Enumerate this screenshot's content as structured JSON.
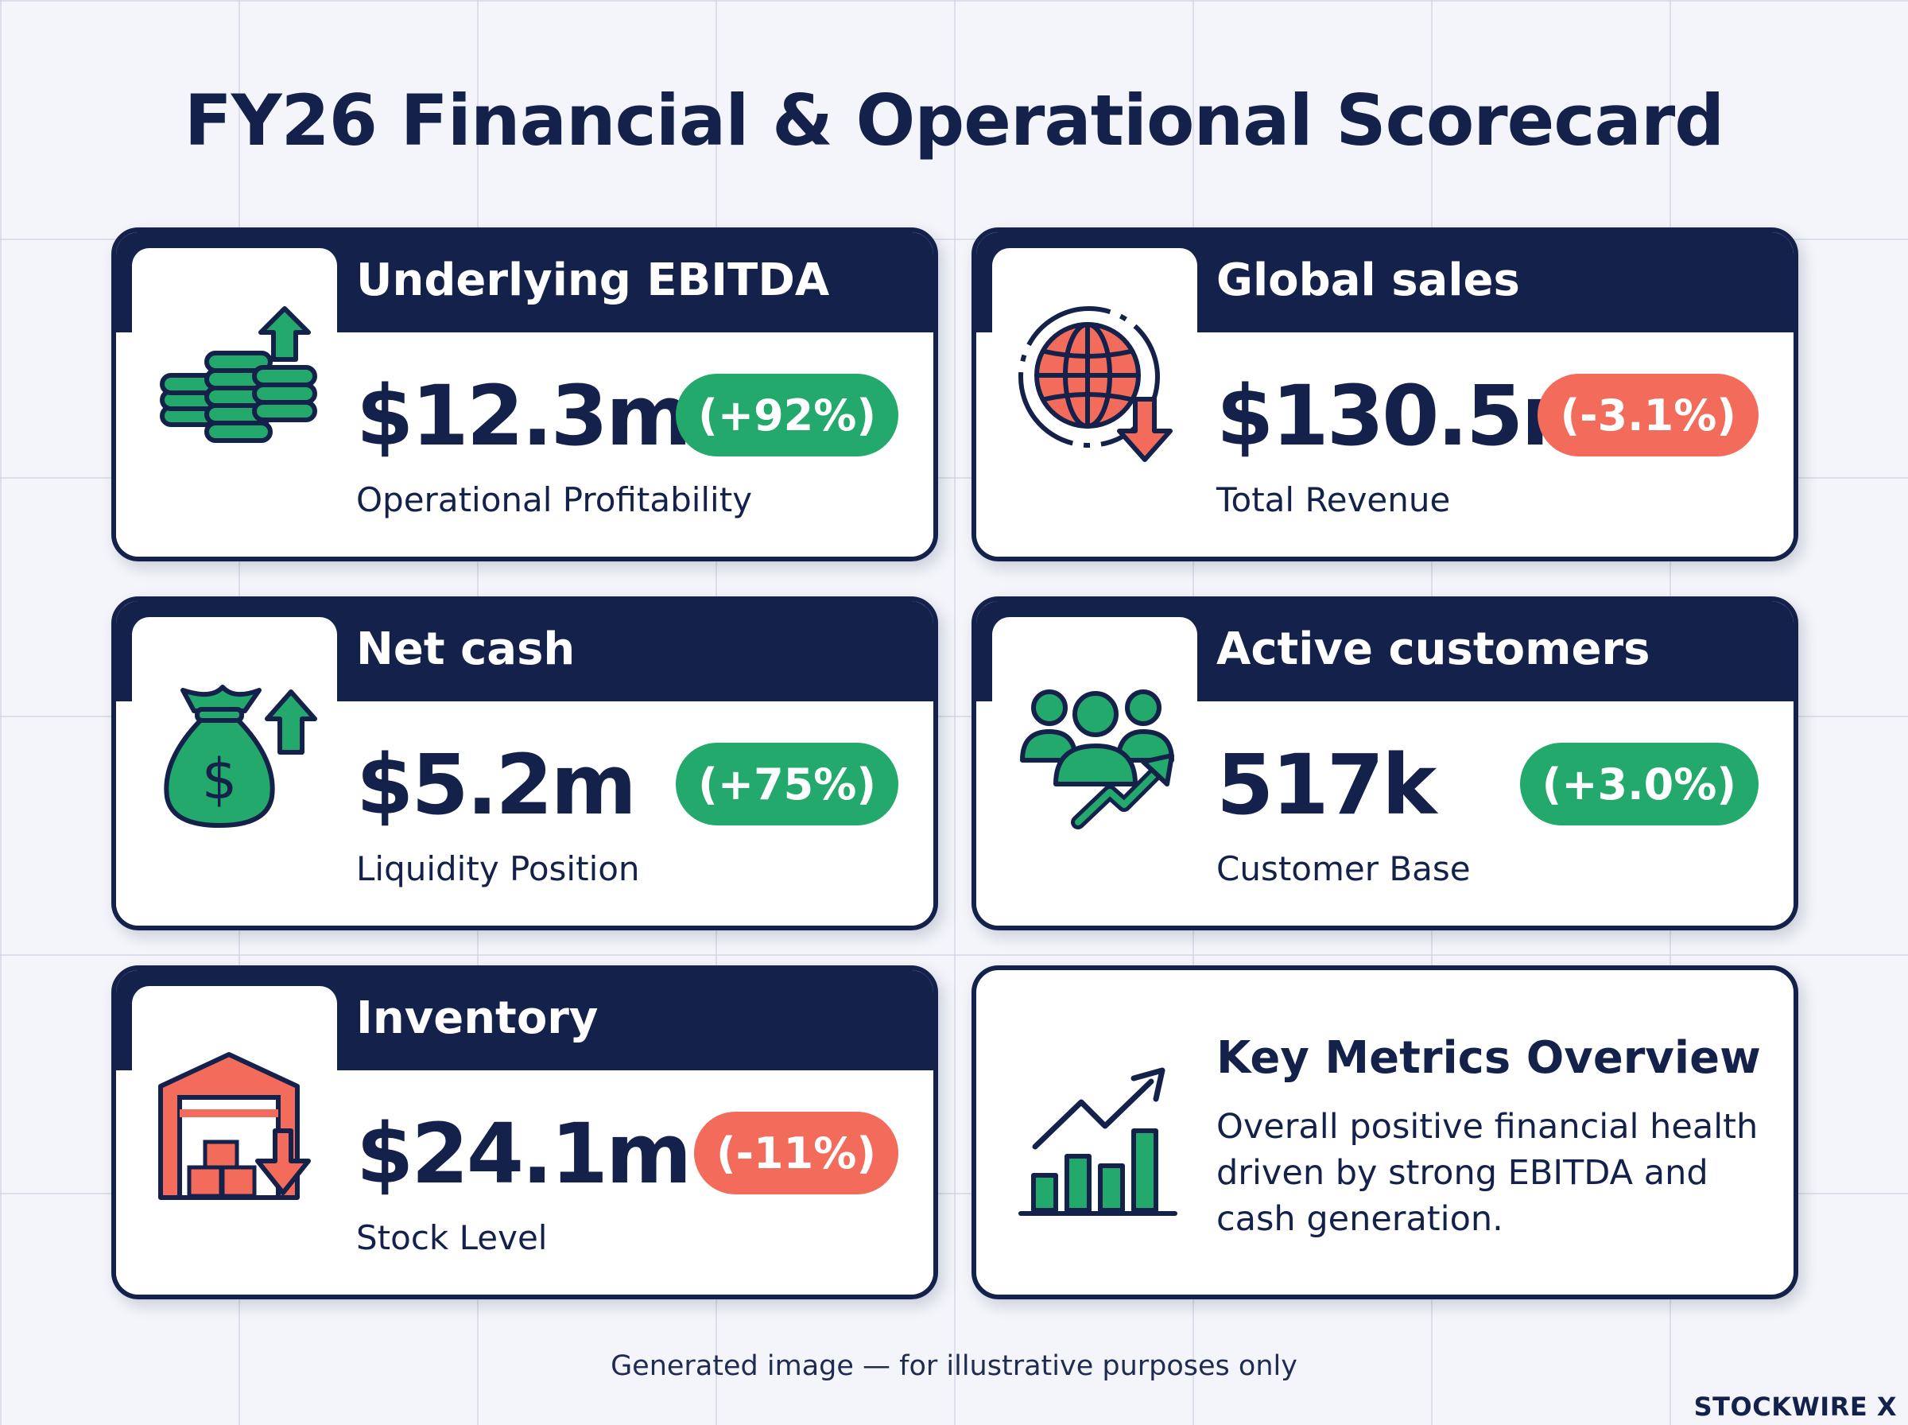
{
  "title": "FY26 Financial & Operational Scorecard",
  "colors": {
    "navy": "#14214a",
    "positive": "#22a96b",
    "negative": "#f26b5b"
  },
  "cards": [
    {
      "heading": "Underlying EBITDA",
      "value": "$12.3m",
      "change": "(+92%)",
      "direction": "positive",
      "subtitle": "Operational Profitability",
      "icon": "coins-arrow-up-icon"
    },
    {
      "heading": "Global sales",
      "value": "$130.5m",
      "change": "(-3.1%)",
      "direction": "negative",
      "subtitle": "Total Revenue",
      "icon": "globe-arrow-down-icon"
    },
    {
      "heading": "Net cash",
      "value": "$5.2m",
      "change": "(+75%)",
      "direction": "positive",
      "subtitle": "Liquidity Position",
      "icon": "money-bag-arrow-up-icon"
    },
    {
      "heading": "Active customers",
      "value": "517k",
      "change": "(+3.0%)",
      "direction": "positive",
      "subtitle": "Customer Base",
      "icon": "customers-trend-up-icon"
    },
    {
      "heading": "Inventory",
      "value": "$24.1m",
      "change": "(-11%)",
      "direction": "negative",
      "subtitle": "Stock Level",
      "icon": "warehouse-arrow-down-icon"
    }
  ],
  "overview": {
    "title": "Key Metrics Overview",
    "text": "Overall positive financial health driven by strong EBITDA and cash generation.",
    "icon": "bar-chart-trend-icon"
  },
  "footer": "Generated image — for illustrative purposes only",
  "brand": "STOCKWIRE X"
}
